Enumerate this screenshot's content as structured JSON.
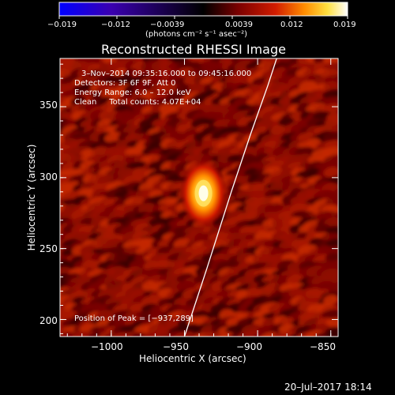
{
  "colorbar": {
    "ticks": [
      "−0.019",
      "−0.012",
      "−0.0039",
      "0.0039",
      "0.012",
      "0.019"
    ],
    "units_text": "(photons cm⁻² s⁻¹ asec⁻²)",
    "colors": [
      "#0000ff",
      "#3a00b0",
      "#000000",
      "#7a0000",
      "#d11c00",
      "#ff8c00",
      "#ffe040",
      "#ffffff"
    ]
  },
  "chart_data": {
    "type": "heatmap",
    "title": "Reconstructed RHESSI Image",
    "xlabel": "Heliocentric X (arcsec)",
    "ylabel": "Heliocentric Y (arcsec)",
    "xlim": [
      -1035,
      -845
    ],
    "ylim": [
      188,
      384
    ],
    "x_ticks": [
      -1000,
      -950,
      -900,
      -850
    ],
    "y_ticks": [
      200,
      250,
      300,
      350
    ],
    "x_tick_labels": [
      "−1000",
      "−950",
      "−900",
      "−850"
    ],
    "y_tick_labels": [
      "200",
      "250",
      "300",
      "350"
    ],
    "source_peak": {
      "x": -937,
      "y": 289
    },
    "limb_curve": [
      [
        -950,
        188
      ],
      [
        -935,
        235
      ],
      [
        -918,
        290
      ],
      [
        -905,
        330
      ],
      [
        -893,
        365
      ],
      [
        -887,
        384
      ]
    ],
    "annotations": [
      "3–Nov–2014 09:35:16.000 to 09:45:16.000",
      "Detectors: 3F 6F 9F, Att 0",
      "Energy Range: 6.0 – 12.0 keV",
      "Clean     Total counts: 4.07E+04",
      "Position of Peak = [−937,289]"
    ]
  },
  "footer": {
    "timestamp": "20–Jul–2017 18:14"
  }
}
